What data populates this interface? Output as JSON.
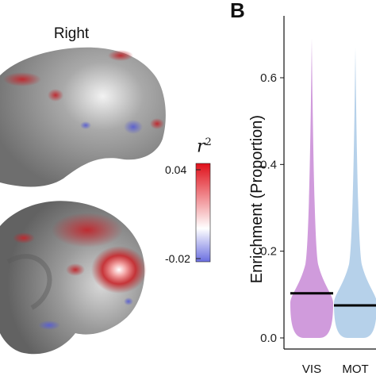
{
  "brain_panel": {
    "hemisphere_label": "Right",
    "colorbar": {
      "title": "r",
      "title_superscript": "2",
      "max_label": "0.04",
      "min_label": "-0.02",
      "colors": {
        "high": "#e0101a",
        "mid": "#ffffff",
        "low": "#6a6ee0"
      }
    },
    "surface_color": "#8a8a8a"
  },
  "panel_letter": "B",
  "chart_data": {
    "type": "violin",
    "ylabel": "Enrichment (Proportion)",
    "ylim": [
      0,
      0.75
    ],
    "yticks": [
      0.0,
      0.2,
      0.4,
      0.6
    ],
    "ytick_labels": [
      "0.0",
      "0.2",
      "0.4",
      "0.6"
    ],
    "categories": [
      "VIS",
      "MOT"
    ],
    "category_labels": [
      "VIS",
      "MOT"
    ],
    "series": [
      {
        "values_min": 0.0,
        "values_max": 0.69,
        "median": 0.103,
        "color": "#c88ad6"
      },
      {
        "values_min": 0.0,
        "values_max": 0.67,
        "median": 0.075,
        "color": "#a9c9e6"
      }
    ],
    "grid": false
  }
}
